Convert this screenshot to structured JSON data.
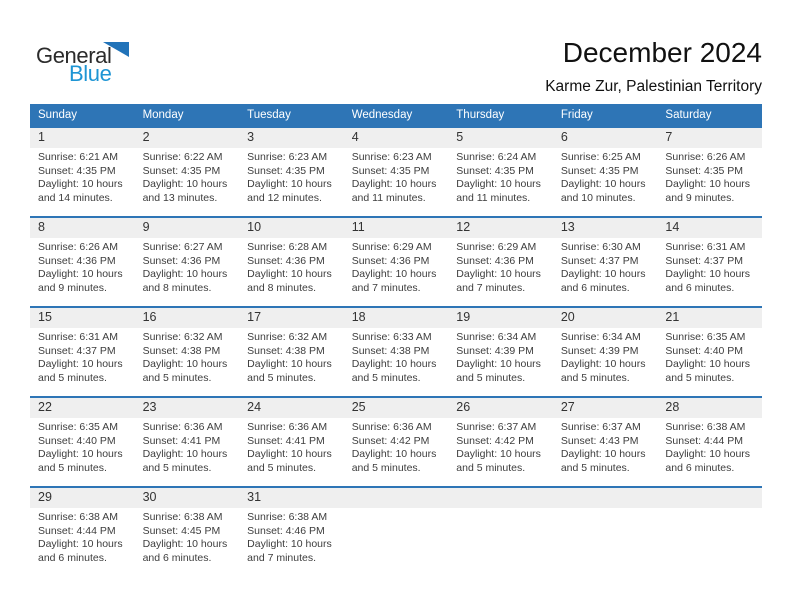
{
  "logo": {
    "general": "General",
    "blue": "Blue"
  },
  "header": {
    "title": "December 2024",
    "subtitle": "Karme Zur, Palestinian Territory"
  },
  "colors": {
    "header_bg": "#2E75B6",
    "row_line": "#2E75B6",
    "number_band": "#EFEFEF",
    "logo_blue": "#1E95D4",
    "logo_triangle": "#2173B9"
  },
  "calendar": {
    "day_headers": [
      "Sunday",
      "Monday",
      "Tuesday",
      "Wednesday",
      "Thursday",
      "Friday",
      "Saturday"
    ],
    "weeks": [
      [
        {
          "num": "1",
          "sunrise": "Sunrise: 6:21 AM",
          "sunset": "Sunset: 4:35 PM",
          "daylight": "Daylight: 10 hours and 14 minutes."
        },
        {
          "num": "2",
          "sunrise": "Sunrise: 6:22 AM",
          "sunset": "Sunset: 4:35 PM",
          "daylight": "Daylight: 10 hours and 13 minutes."
        },
        {
          "num": "3",
          "sunrise": "Sunrise: 6:23 AM",
          "sunset": "Sunset: 4:35 PM",
          "daylight": "Daylight: 10 hours and 12 minutes."
        },
        {
          "num": "4",
          "sunrise": "Sunrise: 6:23 AM",
          "sunset": "Sunset: 4:35 PM",
          "daylight": "Daylight: 10 hours and 11 minutes."
        },
        {
          "num": "5",
          "sunrise": "Sunrise: 6:24 AM",
          "sunset": "Sunset: 4:35 PM",
          "daylight": "Daylight: 10 hours and 11 minutes."
        },
        {
          "num": "6",
          "sunrise": "Sunrise: 6:25 AM",
          "sunset": "Sunset: 4:35 PM",
          "daylight": "Daylight: 10 hours and 10 minutes."
        },
        {
          "num": "7",
          "sunrise": "Sunrise: 6:26 AM",
          "sunset": "Sunset: 4:35 PM",
          "daylight": "Daylight: 10 hours and 9 minutes."
        }
      ],
      [
        {
          "num": "8",
          "sunrise": "Sunrise: 6:26 AM",
          "sunset": "Sunset: 4:36 PM",
          "daylight": "Daylight: 10 hours and 9 minutes."
        },
        {
          "num": "9",
          "sunrise": "Sunrise: 6:27 AM",
          "sunset": "Sunset: 4:36 PM",
          "daylight": "Daylight: 10 hours and 8 minutes."
        },
        {
          "num": "10",
          "sunrise": "Sunrise: 6:28 AM",
          "sunset": "Sunset: 4:36 PM",
          "daylight": "Daylight: 10 hours and 8 minutes."
        },
        {
          "num": "11",
          "sunrise": "Sunrise: 6:29 AM",
          "sunset": "Sunset: 4:36 PM",
          "daylight": "Daylight: 10 hours and 7 minutes."
        },
        {
          "num": "12",
          "sunrise": "Sunrise: 6:29 AM",
          "sunset": "Sunset: 4:36 PM",
          "daylight": "Daylight: 10 hours and 7 minutes."
        },
        {
          "num": "13",
          "sunrise": "Sunrise: 6:30 AM",
          "sunset": "Sunset: 4:37 PM",
          "daylight": "Daylight: 10 hours and 6 minutes."
        },
        {
          "num": "14",
          "sunrise": "Sunrise: 6:31 AM",
          "sunset": "Sunset: 4:37 PM",
          "daylight": "Daylight: 10 hours and 6 minutes."
        }
      ],
      [
        {
          "num": "15",
          "sunrise": "Sunrise: 6:31 AM",
          "sunset": "Sunset: 4:37 PM",
          "daylight": "Daylight: 10 hours and 5 minutes."
        },
        {
          "num": "16",
          "sunrise": "Sunrise: 6:32 AM",
          "sunset": "Sunset: 4:38 PM",
          "daylight": "Daylight: 10 hours and 5 minutes."
        },
        {
          "num": "17",
          "sunrise": "Sunrise: 6:32 AM",
          "sunset": "Sunset: 4:38 PM",
          "daylight": "Daylight: 10 hours and 5 minutes."
        },
        {
          "num": "18",
          "sunrise": "Sunrise: 6:33 AM",
          "sunset": "Sunset: 4:38 PM",
          "daylight": "Daylight: 10 hours and 5 minutes."
        },
        {
          "num": "19",
          "sunrise": "Sunrise: 6:34 AM",
          "sunset": "Sunset: 4:39 PM",
          "daylight": "Daylight: 10 hours and 5 minutes."
        },
        {
          "num": "20",
          "sunrise": "Sunrise: 6:34 AM",
          "sunset": "Sunset: 4:39 PM",
          "daylight": "Daylight: 10 hours and 5 minutes."
        },
        {
          "num": "21",
          "sunrise": "Sunrise: 6:35 AM",
          "sunset": "Sunset: 4:40 PM",
          "daylight": "Daylight: 10 hours and 5 minutes."
        }
      ],
      [
        {
          "num": "22",
          "sunrise": "Sunrise: 6:35 AM",
          "sunset": "Sunset: 4:40 PM",
          "daylight": "Daylight: 10 hours and 5 minutes."
        },
        {
          "num": "23",
          "sunrise": "Sunrise: 6:36 AM",
          "sunset": "Sunset: 4:41 PM",
          "daylight": "Daylight: 10 hours and 5 minutes."
        },
        {
          "num": "24",
          "sunrise": "Sunrise: 6:36 AM",
          "sunset": "Sunset: 4:41 PM",
          "daylight": "Daylight: 10 hours and 5 minutes."
        },
        {
          "num": "25",
          "sunrise": "Sunrise: 6:36 AM",
          "sunset": "Sunset: 4:42 PM",
          "daylight": "Daylight: 10 hours and 5 minutes."
        },
        {
          "num": "26",
          "sunrise": "Sunrise: 6:37 AM",
          "sunset": "Sunset: 4:42 PM",
          "daylight": "Daylight: 10 hours and 5 minutes."
        },
        {
          "num": "27",
          "sunrise": "Sunrise: 6:37 AM",
          "sunset": "Sunset: 4:43 PM",
          "daylight": "Daylight: 10 hours and 5 minutes."
        },
        {
          "num": "28",
          "sunrise": "Sunrise: 6:38 AM",
          "sunset": "Sunset: 4:44 PM",
          "daylight": "Daylight: 10 hours and 6 minutes."
        }
      ],
      [
        {
          "num": "29",
          "sunrise": "Sunrise: 6:38 AM",
          "sunset": "Sunset: 4:44 PM",
          "daylight": "Daylight: 10 hours and 6 minutes."
        },
        {
          "num": "30",
          "sunrise": "Sunrise: 6:38 AM",
          "sunset": "Sunset: 4:45 PM",
          "daylight": "Daylight: 10 hours and 6 minutes."
        },
        {
          "num": "31",
          "sunrise": "Sunrise: 6:38 AM",
          "sunset": "Sunset: 4:46 PM",
          "daylight": "Daylight: 10 hours and 7 minutes."
        },
        null,
        null,
        null,
        null
      ]
    ]
  }
}
